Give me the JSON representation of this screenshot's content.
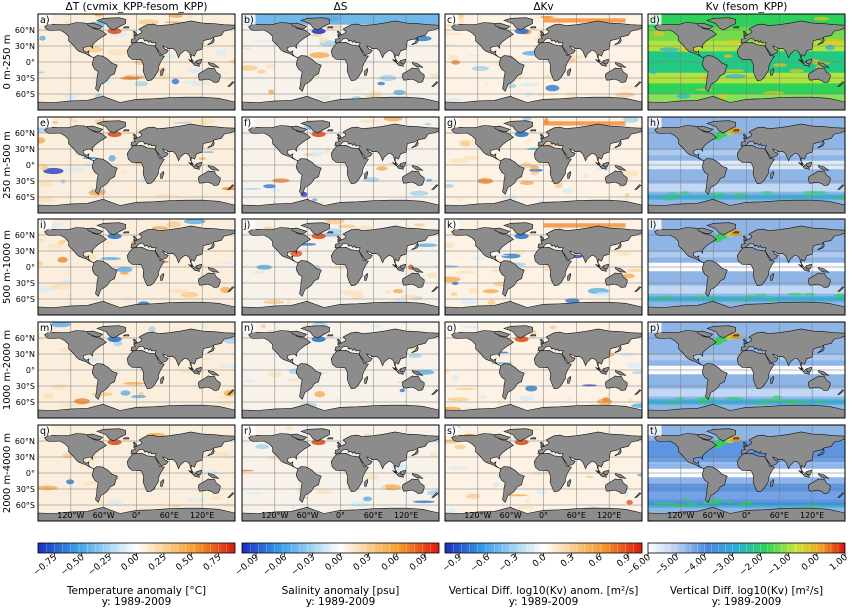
{
  "figure": {
    "columns": [
      {
        "title": "ΔT (cvmix_KPP-fesom_KPP)",
        "colorbar": {
          "label": "Temperature anomaly [°C]",
          "sublabel": "y: 1989-2009",
          "ticks": [
            "−0.75",
            "−0.50",
            "−0.25",
            "0.00",
            "0.25",
            "0.50",
            "0.75"
          ]
        }
      },
      {
        "title": "ΔS",
        "colorbar": {
          "label": "Salinity anomaly [psu]",
          "sublabel": "y: 1989-2009",
          "ticks": [
            "−0.09",
            "−0.06",
            "−0.03",
            "0.00",
            "0.03",
            "0.06",
            "0.09"
          ]
        }
      },
      {
        "title": "ΔKv",
        "colorbar": {
          "label": "Vertical Diff. log10(Kv) anom. [m²/s]",
          "sublabel": "y: 1989-2009",
          "ticks": [
            "−0.9",
            "−0.6",
            "−0.3",
            "0.0",
            "0.3",
            "0.6",
            "0.9"
          ]
        }
      },
      {
        "title": "Kv (fesom_KPP)",
        "colorbar": {
          "label": "Vertical Diff. log10(Kv) [m²/s]",
          "sublabel": "y: 1989-2009",
          "ticks": [
            "−6.00",
            "−5.00",
            "−4.00",
            "−3.00",
            "−2.00",
            "−1.00",
            "0.00",
            "1.00"
          ]
        }
      }
    ],
    "rows": [
      "0 m-250 m",
      "250 m-500 m",
      "500 m-1000 m",
      "1000 m-2000 m",
      "2000 m-4000 m"
    ],
    "panel_letters": [
      [
        "a)",
        "b)",
        "c)",
        "d)"
      ],
      [
        "e)",
        "f)",
        "g)",
        "h)"
      ],
      [
        "i)",
        "j)",
        "k)",
        "l)"
      ],
      [
        "m)",
        "n)",
        "o)",
        "p)"
      ],
      [
        "q)",
        "r)",
        "s)",
        "t)"
      ]
    ],
    "lat_ticks": [
      "60°N",
      "30°N",
      "0°",
      "30°S",
      "60°S"
    ],
    "lon_ticks": [
      "120°W",
      "60°W",
      "0°",
      "60°E",
      "120°E"
    ]
  },
  "chart_data": {
    "type": "heatmap",
    "panels": 20,
    "layout": "5 rows (depth layers) x 4 columns (fields)",
    "period": "1989-2009",
    "colorbars": [
      {
        "min": -0.9,
        "max": 0.9,
        "ticks": [
          -0.75,
          -0.5,
          -0.25,
          0,
          0.25,
          0.5,
          0.75
        ]
      },
      {
        "min": -0.105,
        "max": 0.105,
        "ticks": [
          -0.09,
          -0.06,
          -0.03,
          0,
          0.03,
          0.06,
          0.09
        ]
      },
      {
        "min": -1.05,
        "max": 1.05,
        "ticks": [
          -0.9,
          -0.6,
          -0.3,
          0,
          0.3,
          0.6,
          0.9
        ]
      },
      {
        "min": -6.0,
        "max": 1.0,
        "ticks": [
          -6,
          -5,
          -4,
          -3,
          -2,
          -1,
          0,
          1
        ]
      }
    ],
    "colors": {
      "land": "#8c8c8c",
      "ocean_neutral": "#fbeedc",
      "kv_background": "#8fb4e6",
      "kv_high": "#1fd65a"
    }
  }
}
